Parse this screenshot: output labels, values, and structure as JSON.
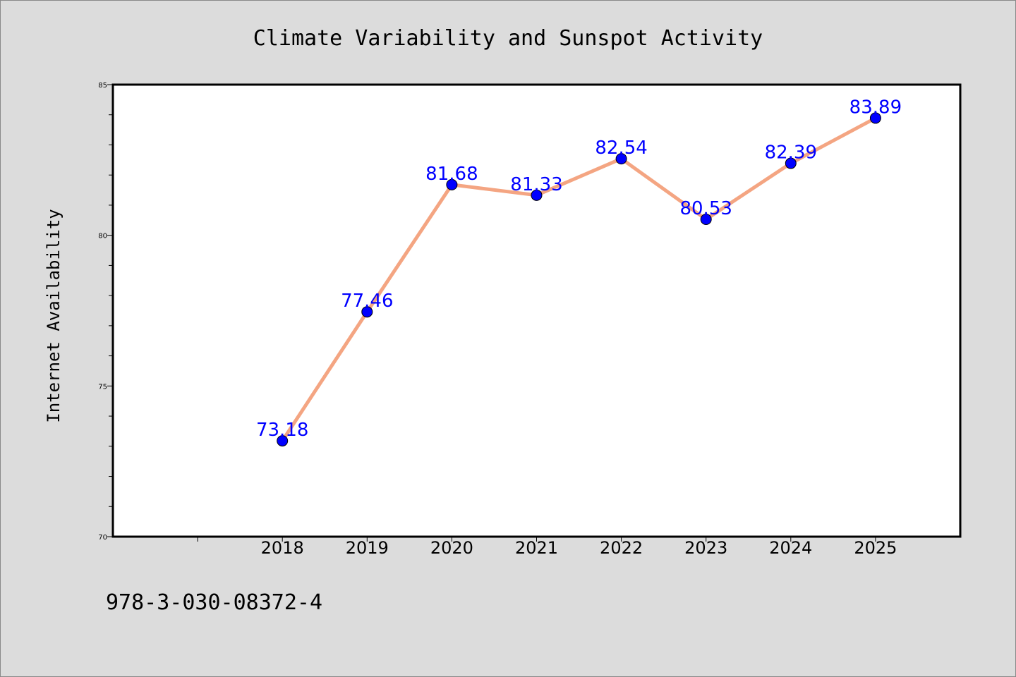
{
  "chart_data": {
    "type": "line",
    "title": "Climate Variability and Sunspot Activity",
    "xlabel": "",
    "ylabel": "Internet Availability",
    "categories": [
      "2018",
      "2019",
      "2020",
      "2021",
      "2022",
      "2023",
      "2024",
      "2025"
    ],
    "series": [
      {
        "values": [
          73.18,
          77.46,
          81.68,
          81.33,
          82.54,
          80.53,
          82.39,
          83.89
        ],
        "data_labels": [
          "73.18",
          "77.46",
          "81.68",
          "81.33",
          "82.54",
          "80.53",
          "82.39",
          "83.89"
        ]
      }
    ],
    "ylim": [
      70,
      85
    ],
    "yticks": [
      "70",
      "75",
      "80",
      "85"
    ],
    "xlim_years": [
      2016,
      2026
    ],
    "grid": false,
    "legend": "none",
    "colors": {
      "line": "#f4a582",
      "marker": "#0000ff",
      "data_label": "#0000ff",
      "background": "#dcdcdc",
      "plot_background": "#ffffff"
    }
  },
  "footnote": "978-3-030-08372-4"
}
